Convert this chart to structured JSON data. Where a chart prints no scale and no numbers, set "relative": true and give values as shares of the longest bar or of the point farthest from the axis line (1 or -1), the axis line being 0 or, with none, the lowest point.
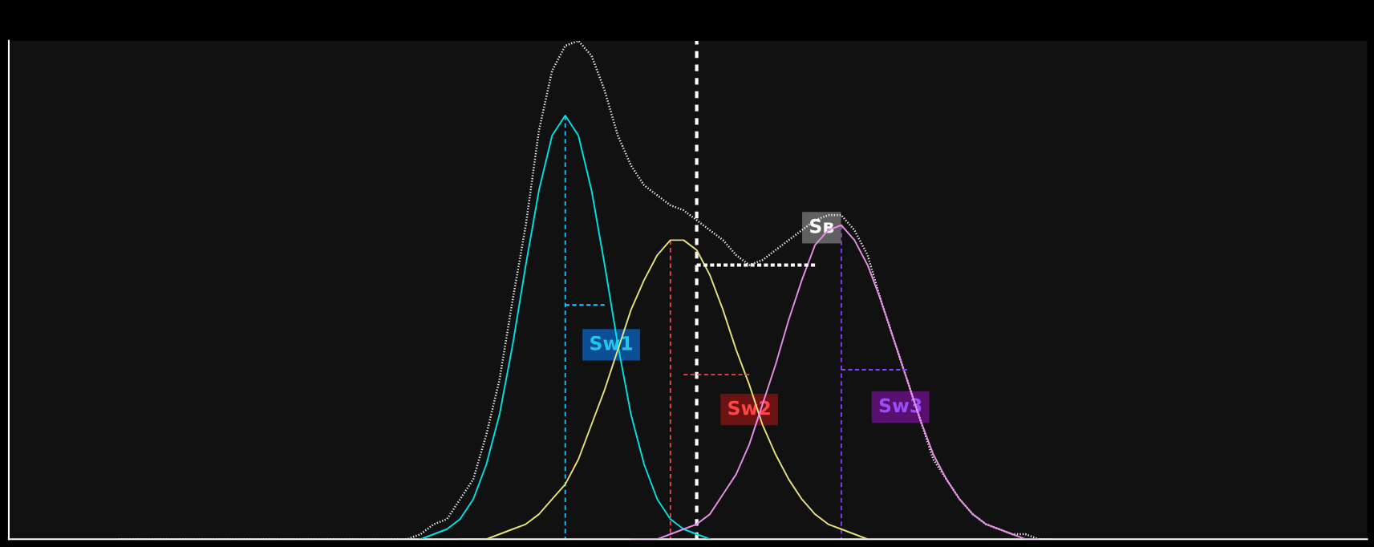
{
  "chart_data": {
    "type": "line",
    "relative": true,
    "legend": false,
    "marker": "none",
    "categories": [
      null,
      null,
      null,
      null,
      null,
      null,
      null,
      null,
      null,
      null,
      null,
      null,
      null,
      null,
      null,
      null,
      null,
      null,
      null,
      null,
      null,
      null,
      null,
      null,
      null,
      null,
      null,
      null,
      null,
      null,
      null,
      null,
      null,
      null,
      null,
      null,
      null,
      null,
      null,
      null,
      null,
      null,
      null,
      null,
      null,
      null,
      null,
      null,
      null,
      null,
      null,
      null,
      null,
      null,
      null,
      null,
      null,
      null,
      null,
      null,
      null,
      null,
      null,
      null,
      null,
      null,
      null,
      null,
      null,
      null,
      null,
      null,
      null,
      null,
      null,
      null,
      null,
      null,
      null,
      null,
      null,
      null,
      null,
      null,
      null,
      null,
      null
    ],
    "series": [
      {
        "color": "#e6e6e6",
        "line_style": "dotted",
        "values": [
          0,
          0,
          0,
          0,
          0,
          0,
          0,
          0,
          0,
          0,
          0,
          0,
          0,
          0,
          0,
          0,
          0,
          0,
          0,
          0,
          0,
          0,
          0.0,
          0.01,
          0.03,
          0.04,
          0.08,
          0.12,
          0.21,
          0.32,
          0.48,
          0.63,
          0.82,
          0.94,
          0.99,
          1.0,
          0.97,
          0.9,
          0.81,
          0.75,
          0.71,
          0.69,
          0.67,
          0.66,
          0.64,
          0.62,
          0.6,
          0.57,
          0.55,
          0.56,
          0.58,
          0.6,
          0.62,
          0.64,
          0.65,
          0.65,
          0.62,
          0.57,
          0.48,
          0.4,
          0.32,
          0.24,
          0.16,
          0.12,
          0.08,
          0.05,
          0.03,
          0.02,
          0.01,
          0.01,
          0.0,
          0.0,
          null,
          null,
          null,
          null,
          null,
          null,
          null,
          null,
          null,
          null,
          null,
          null,
          null,
          null,
          null
        ]
      },
      {
        "color": "#00e0e0",
        "line_style": "solid",
        "values": [
          null,
          null,
          null,
          null,
          null,
          null,
          null,
          null,
          null,
          null,
          null,
          null,
          null,
          null,
          null,
          null,
          null,
          null,
          null,
          null,
          null,
          null,
          null,
          0.0,
          0.01,
          0.02,
          0.04,
          0.08,
          0.15,
          0.25,
          0.39,
          0.55,
          0.7,
          0.81,
          0.85,
          0.81,
          0.7,
          0.55,
          0.39,
          0.25,
          0.15,
          0.08,
          0.04,
          0.02,
          0.01,
          0.0,
          null,
          null,
          null,
          null,
          null,
          null,
          null,
          null,
          null,
          null,
          null,
          null,
          null,
          null,
          null,
          null,
          null,
          null,
          null,
          null,
          null,
          null,
          null,
          null,
          null,
          null,
          null,
          null,
          null,
          null,
          null,
          null,
          null,
          null,
          null,
          null,
          null,
          null,
          null,
          null,
          null
        ]
      },
      {
        "color": "#e6e07a",
        "line_style": "solid",
        "values": [
          null,
          null,
          null,
          null,
          null,
          null,
          null,
          null,
          null,
          null,
          null,
          null,
          null,
          null,
          null,
          null,
          null,
          null,
          null,
          null,
          null,
          null,
          null,
          null,
          null,
          null,
          0.0,
          0.0,
          0.0,
          0.01,
          0.02,
          0.03,
          0.05,
          0.08,
          0.11,
          0.16,
          0.23,
          0.3,
          0.38,
          0.46,
          0.52,
          0.57,
          0.6,
          0.6,
          0.58,
          0.53,
          0.46,
          0.38,
          0.31,
          0.23,
          0.17,
          0.12,
          0.08,
          0.05,
          0.03,
          0.02,
          0.01,
          0.0,
          null,
          null,
          null,
          null,
          null,
          null,
          null,
          null,
          null,
          null,
          null,
          null,
          null,
          null,
          null,
          null,
          null,
          null,
          null,
          null,
          null,
          null,
          null,
          null,
          null,
          null,
          null,
          null,
          null
        ]
      },
      {
        "color": "#e88ce8",
        "line_style": "solid",
        "values": [
          null,
          null,
          null,
          null,
          null,
          null,
          null,
          null,
          null,
          null,
          null,
          null,
          null,
          null,
          null,
          null,
          null,
          null,
          null,
          null,
          null,
          null,
          null,
          null,
          null,
          null,
          null,
          null,
          null,
          null,
          null,
          null,
          null,
          null,
          null,
          null,
          null,
          null,
          null,
          0.0,
          0.0,
          0.0,
          0.01,
          0.02,
          0.03,
          0.05,
          0.09,
          0.13,
          0.19,
          0.27,
          0.35,
          0.44,
          0.52,
          0.59,
          0.62,
          0.63,
          0.6,
          0.55,
          0.48,
          0.4,
          0.32,
          0.24,
          0.17,
          0.12,
          0.08,
          0.05,
          0.03,
          0.02,
          0.01,
          0.0,
          0.0,
          null,
          null,
          null,
          null,
          null,
          null,
          null,
          null,
          null,
          null,
          null,
          null,
          null,
          null,
          null,
          null
        ]
      },
      {
        "color": "#1ec8ff",
        "line_style": "dashed",
        "values": [
          null,
          null,
          null,
          null,
          null,
          null,
          null,
          null,
          null,
          null,
          null,
          null,
          null,
          null,
          null,
          null,
          null,
          null,
          null,
          null,
          null,
          null,
          null,
          null,
          null,
          null,
          null,
          null,
          null,
          null,
          null,
          null,
          null,
          null,
          0.47,
          0.47,
          0.47,
          0.47,
          null,
          null,
          null,
          null,
          null,
          null,
          null,
          null,
          null,
          null,
          null,
          null,
          null,
          null,
          null,
          null,
          null,
          null,
          null,
          null,
          null,
          null,
          null,
          null,
          null,
          null,
          null,
          null,
          null,
          null,
          null,
          null,
          null,
          null,
          null,
          null,
          null,
          null,
          null,
          null,
          null,
          null,
          null,
          null,
          null,
          null,
          null,
          null,
          null
        ]
      },
      {
        "color": "#ff4040",
        "line_style": "dashed",
        "values": [
          null,
          null,
          null,
          null,
          null,
          null,
          null,
          null,
          null,
          null,
          null,
          null,
          null,
          null,
          null,
          null,
          null,
          null,
          null,
          null,
          null,
          null,
          null,
          null,
          null,
          null,
          null,
          null,
          null,
          null,
          null,
          null,
          null,
          null,
          null,
          null,
          null,
          null,
          null,
          null,
          null,
          null,
          null,
          0.33,
          0.33,
          0.33,
          0.33,
          0.33,
          0.33,
          null,
          null,
          null,
          null,
          null,
          null,
          null,
          null,
          null,
          null,
          null,
          null,
          null,
          null,
          null,
          null,
          null,
          null,
          null,
          null,
          null,
          null,
          null,
          null,
          null,
          null,
          null,
          null,
          null,
          null,
          null,
          null,
          null,
          null,
          null,
          null,
          null,
          null
        ]
      },
      {
        "color": "#8a40ff",
        "line_style": "dashed",
        "values": [
          null,
          null,
          null,
          null,
          null,
          null,
          null,
          null,
          null,
          null,
          null,
          null,
          null,
          null,
          null,
          null,
          null,
          null,
          null,
          null,
          null,
          null,
          null,
          null,
          null,
          null,
          null,
          null,
          null,
          null,
          null,
          null,
          null,
          null,
          null,
          null,
          null,
          null,
          null,
          null,
          null,
          null,
          null,
          null,
          null,
          null,
          null,
          null,
          null,
          null,
          null,
          null,
          null,
          null,
          null,
          0.34,
          0.34,
          0.34,
          0.34,
          0.34,
          0.34,
          null,
          null,
          null,
          null,
          null,
          null,
          null,
          null,
          null,
          null,
          null,
          null,
          null,
          null,
          null,
          null,
          null,
          null,
          null,
          null,
          null,
          null,
          null,
          null,
          null,
          null
        ]
      },
      {
        "color": "#ffffff",
        "line_style": "dashed",
        "values": [
          null,
          null,
          null,
          null,
          null,
          null,
          null,
          null,
          null,
          null,
          null,
          null,
          null,
          null,
          null,
          null,
          null,
          null,
          null,
          null,
          null,
          null,
          null,
          null,
          null,
          null,
          null,
          null,
          null,
          null,
          null,
          null,
          null,
          null,
          null,
          null,
          null,
          null,
          null,
          null,
          null,
          null,
          null,
          null,
          0.55,
          0.55,
          0.55,
          0.55,
          0.55,
          0.55,
          0.55,
          0.55,
          0.55,
          0.55,
          null,
          null,
          null,
          null,
          null,
          null,
          null,
          null,
          null,
          null,
          null,
          null,
          null,
          null,
          null,
          null,
          null,
          null,
          null,
          null,
          null,
          null,
          null,
          null,
          null,
          null,
          null,
          null,
          null,
          null,
          null,
          null,
          null
        ]
      }
    ],
    "annotations": [
      "Sw1",
      "Sw2",
      "Sw3",
      "Sʙ"
    ]
  }
}
